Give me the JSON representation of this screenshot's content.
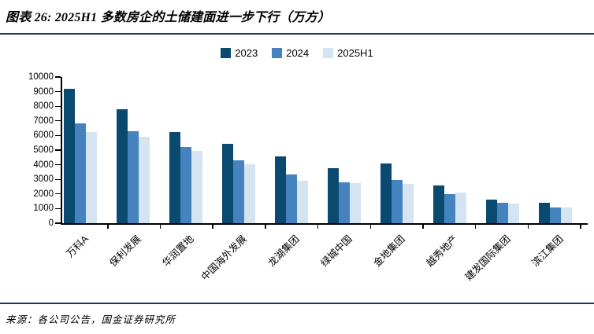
{
  "header": {
    "title": "图表 26: 2025H1 多数房企的土储建面进一步下行（万方）"
  },
  "legend": [
    {
      "label": "2023",
      "color": "#0B4A70"
    },
    {
      "label": "2024",
      "color": "#4583BE"
    },
    {
      "label": "2025H1",
      "color": "#D4E4F1"
    }
  ],
  "chart_data": {
    "type": "bar",
    "title": "图表 26: 2025H1 多数房企的土储建面进一步下行（万方）",
    "categories": [
      "万科A",
      "保利发展",
      "华润置地",
      "中国海外发展",
      "龙湖集团",
      "绿城中国",
      "金地集团",
      "越秀地产",
      "建发国际集团",
      "滨江集团"
    ],
    "series": [
      {
        "name": "2023",
        "color": "#0B4A70",
        "values": [
          9200,
          7800,
          6250,
          5450,
          4550,
          3750,
          4100,
          2600,
          1600,
          1400
        ]
      },
      {
        "name": "2024",
        "color": "#4583BE",
        "values": [
          6850,
          6300,
          5200,
          4300,
          3350,
          2800,
          2950,
          2000,
          1400,
          1050
        ]
      },
      {
        "name": "2025H1",
        "color": "#D4E4F1",
        "values": [
          6250,
          5900,
          4950,
          4050,
          2900,
          2750,
          2700,
          2100,
          1350,
          1100
        ]
      }
    ],
    "xlabel": "",
    "ylabel": "",
    "ylim": [
      0,
      10000
    ],
    "ytick_step": 1000,
    "grid": false,
    "legend_position": "top-center"
  },
  "footer": {
    "source": "来源：各公司公告，国金证券研究所"
  },
  "colors": {
    "rule": "#17375E",
    "axis": "#000000"
  }
}
